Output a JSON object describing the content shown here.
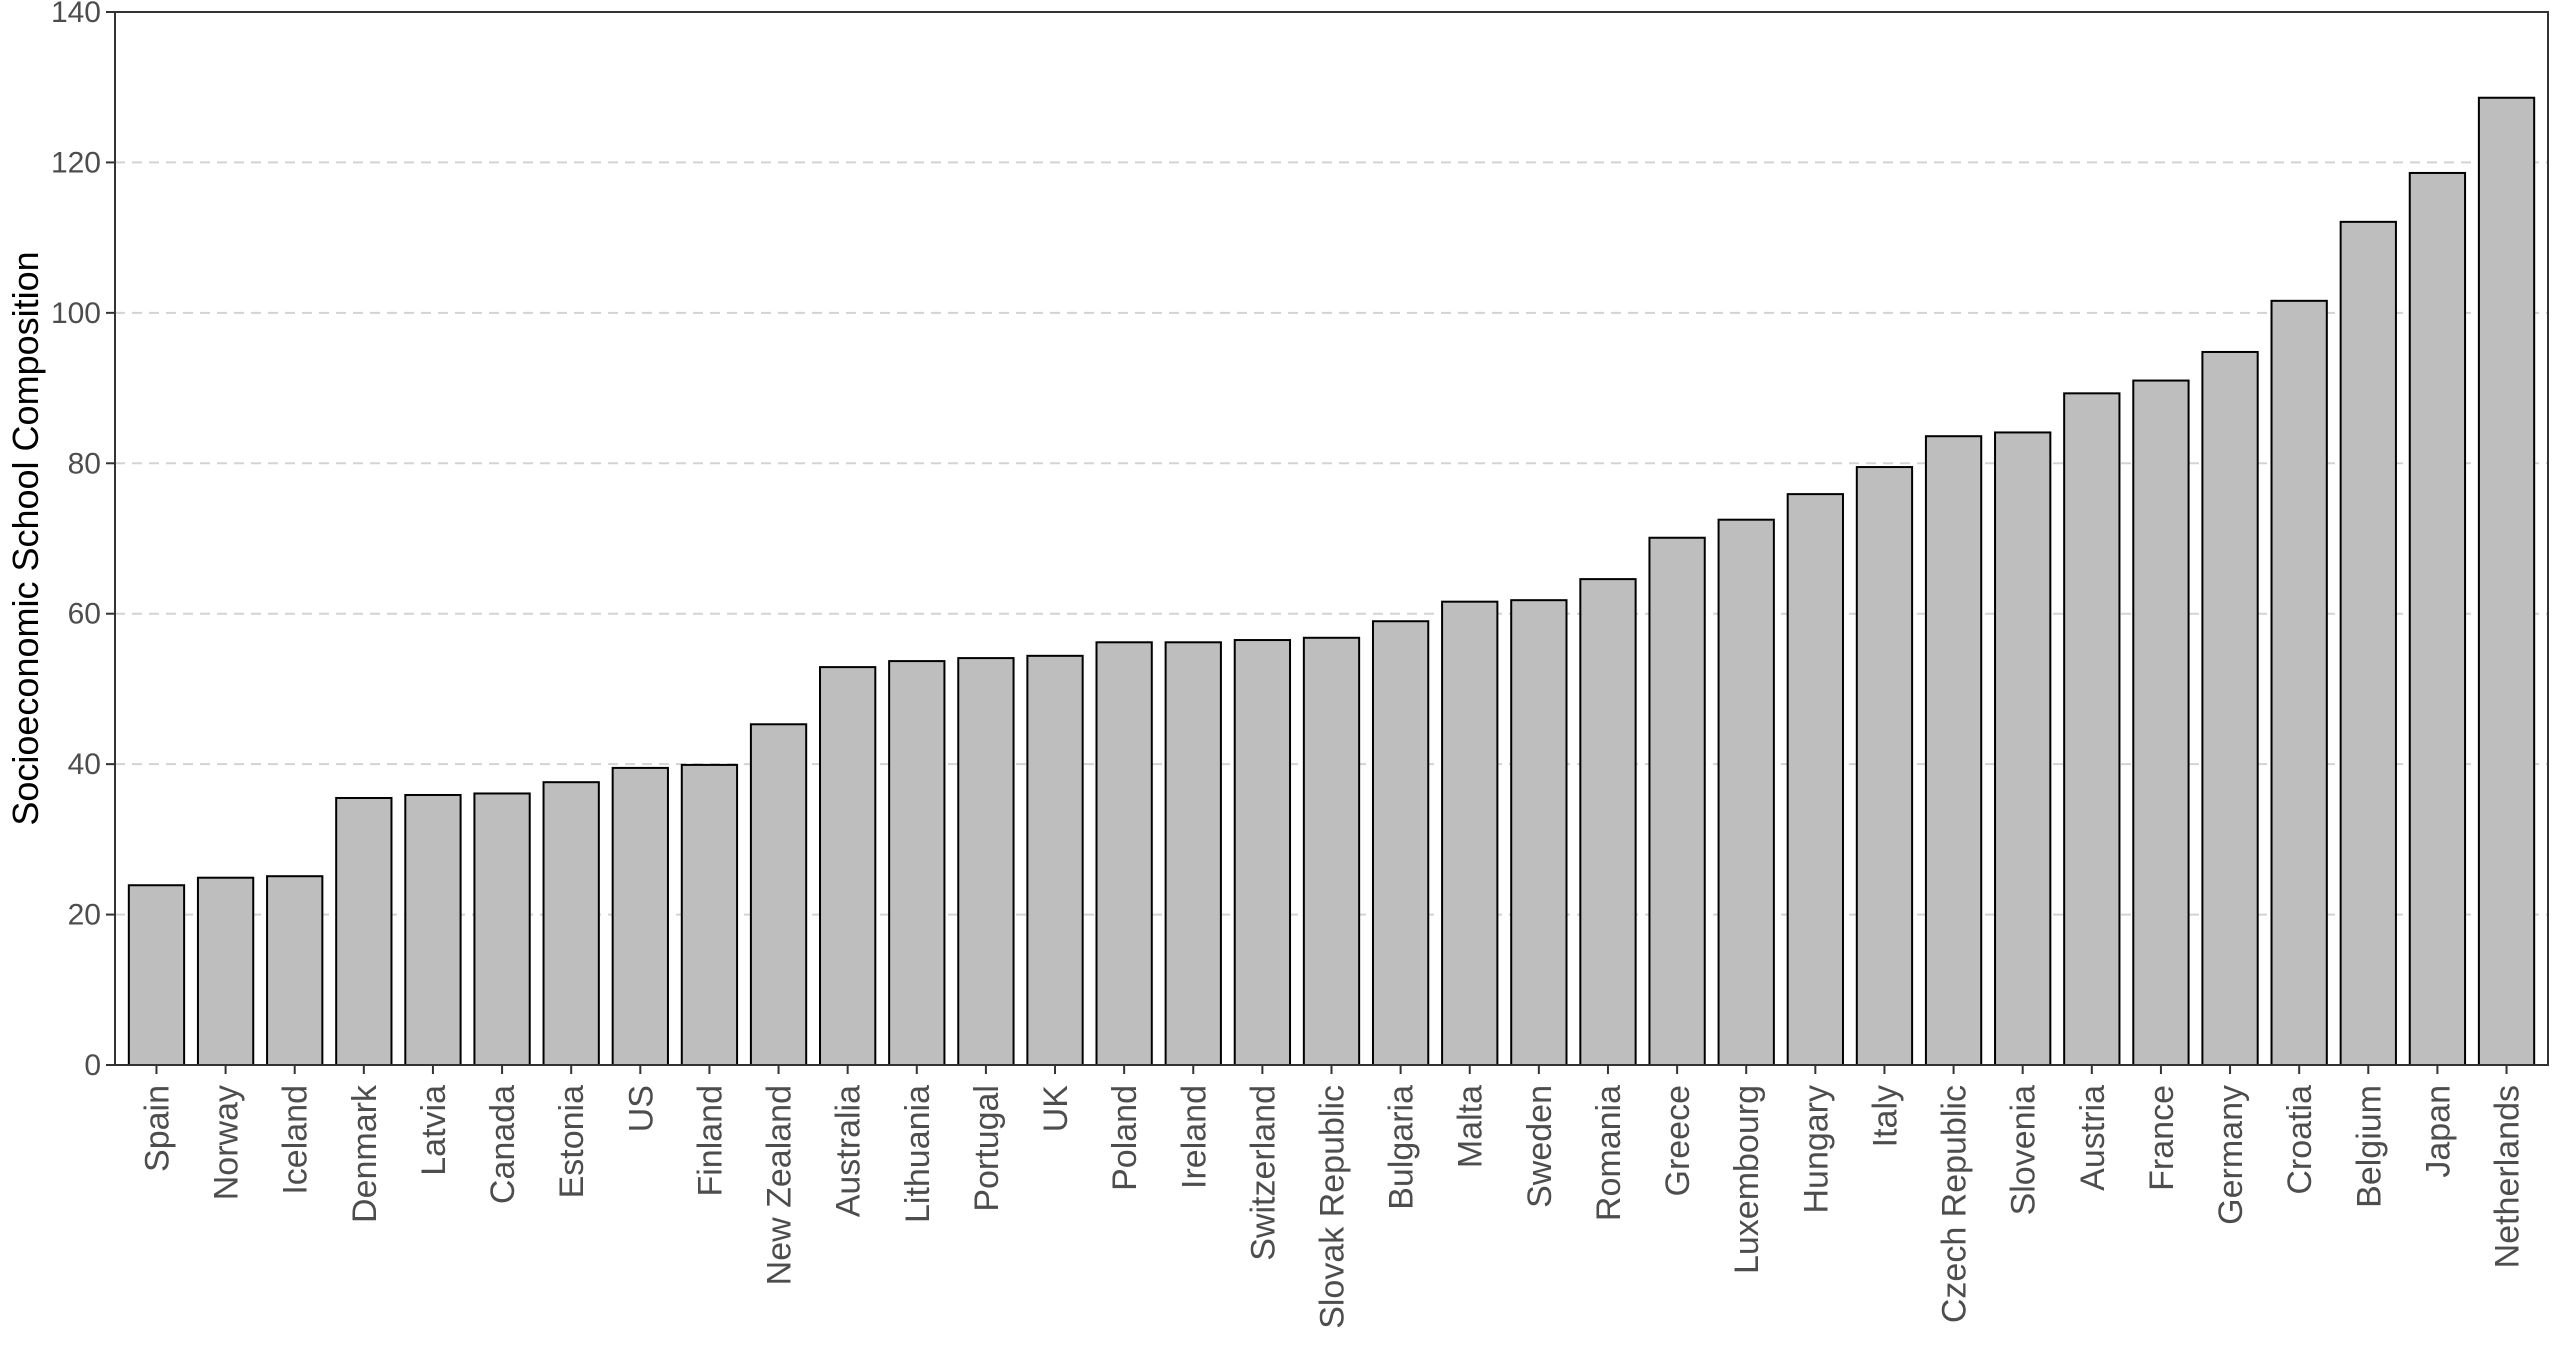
{
  "chart_data": {
    "type": "bar",
    "title": "",
    "xlabel": "",
    "ylabel": "Socioeconomic School Composition",
    "ylim": [
      0,
      140
    ],
    "yticks": [
      0,
      20,
      40,
      60,
      80,
      100,
      120,
      140
    ],
    "grid": "horizontal dashed",
    "legend": "none",
    "categories": [
      "Spain",
      "Norway",
      "Iceland",
      "Denmark",
      "Latvia",
      "Canada",
      "Estonia",
      "US",
      "Finland",
      "New Zealand",
      "Australia",
      "Lithuania",
      "Portugal",
      "UK",
      "Poland",
      "Ireland",
      "Switzerland",
      "Slovak Republic",
      "Bulgaria",
      "Malta",
      "Sweden",
      "Romania",
      "Greece",
      "Luxembourg",
      "Hungary",
      "Italy",
      "Czech Republic",
      "Slovenia",
      "Austria",
      "France",
      "Germany",
      "Croatia",
      "Belgium",
      "Japan",
      "Netherlands"
    ],
    "values": [
      23.9,
      24.9,
      25.1,
      35.5,
      35.9,
      36.1,
      37.6,
      39.5,
      39.9,
      45.3,
      52.9,
      53.7,
      54.1,
      54.4,
      56.2,
      56.2,
      56.5,
      56.8,
      59.0,
      61.6,
      61.8,
      64.6,
      70.1,
      72.5,
      75.9,
      79.5,
      83.6,
      84.1,
      89.3,
      91.0,
      94.8,
      101.6,
      112.1,
      118.6,
      128.6
    ],
    "colors": {
      "bar_fill": "#bebebe",
      "bar_stroke": "#000000",
      "grid": "#d3d3d3",
      "axis": "#333333"
    }
  }
}
